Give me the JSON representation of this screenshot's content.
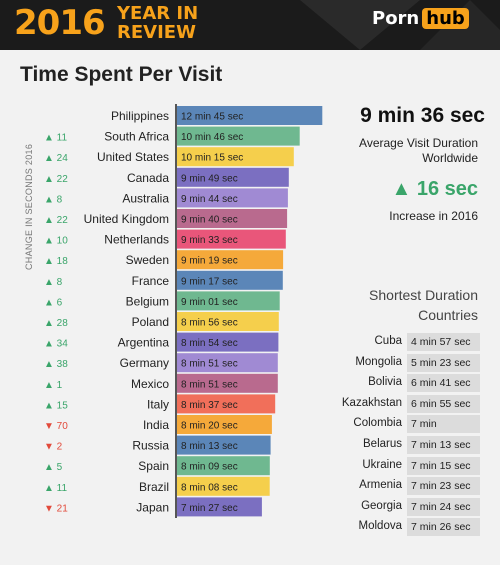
{
  "header": {
    "year": "2016",
    "year_in": "YEAR IN",
    "review": "REVIEW",
    "brand_left": "Porn",
    "brand_right": "hub"
  },
  "chart_data": {
    "type": "bar",
    "title": "Time Spent Per Visit",
    "ylabel": "CHANGE IN SECONDS 2016",
    "categories": [
      "Philippines",
      "South Africa",
      "United States",
      "Canada",
      "Australia",
      "United Kingdom",
      "Netherlands",
      "Sweden",
      "France",
      "Belgium",
      "Poland",
      "Argentina",
      "Germany",
      "Mexico",
      "Italy",
      "India",
      "Russia",
      "Spain",
      "Brazil",
      "Japan"
    ],
    "values_seconds": [
      765,
      646,
      615,
      589,
      584,
      580,
      573,
      559,
      557,
      541,
      536,
      534,
      531,
      531,
      517,
      500,
      493,
      489,
      488,
      447
    ],
    "value_labels": [
      "12 min 45 sec",
      "10 min 46 sec",
      "10 min 15 sec",
      "9 min 49 sec",
      "9 min 44 sec",
      "9 min 40 sec",
      "9 min 33 sec",
      "9 min 19 sec",
      "9 min 17 sec",
      "9 min 01 sec",
      "8 min 56 sec",
      "8 min 54 sec",
      "8 min 51 sec",
      "8 min 51 sec",
      "8 min 37 sec",
      "8 min 20 sec",
      "8 min 13 sec",
      "8 min 09 sec",
      "8 min 08 sec",
      "7 min 27 sec"
    ],
    "changes": [
      "",
      "▲ 11",
      "▲ 24",
      "▲ 22",
      "▲ 8",
      "▲ 22",
      "▲ 10",
      "▲ 18",
      "▲ 8",
      "▲ 6",
      "▲ 28",
      "▲ 34",
      "▲ 38",
      "▲ 1",
      "▲ 15",
      "▼ 70",
      "▼ 2",
      "▲ 5",
      "▲ 11",
      "▼ 21"
    ],
    "change_direction": [
      "none",
      "up",
      "up",
      "up",
      "up",
      "up",
      "up",
      "up",
      "up",
      "up",
      "up",
      "up",
      "up",
      "up",
      "up",
      "down",
      "down",
      "up",
      "up",
      "down"
    ],
    "bar_colors": [
      "#5b86b8",
      "#6fb890",
      "#f5cf4c",
      "#7b6fc1",
      "#a08ad3",
      "#b96a8e",
      "#e9567a",
      "#f5a93a",
      "#5b86b8",
      "#6fb890",
      "#f5cf4c",
      "#7b6fc1",
      "#a08ad3",
      "#b96a8e",
      "#f16f5a",
      "#f5a93a",
      "#5b86b8",
      "#6fb890",
      "#f5cf4c",
      "#7b6fc1"
    ],
    "x_axis_max_seconds": 790,
    "change_up_color": "#3aa56a",
    "change_down_color": "#e24a3b"
  },
  "summary": {
    "average_value": "9 min 36 sec",
    "average_label": "Average Visit Duration Worldwide",
    "increase_value": "▲ 16 sec",
    "increase_label": "Increase in 2016"
  },
  "shortest": {
    "title": "Shortest Duration Countries",
    "countries": [
      {
        "country": "Cuba",
        "time": "4 min 57 sec"
      },
      {
        "country": "Mongolia",
        "time": "5 min 23 sec"
      },
      {
        "country": "Bolivia",
        "time": "6 min 41 sec"
      },
      {
        "country": "Kazakhstan",
        "time": "6 min 55 sec"
      },
      {
        "country": "Colombia",
        "time": "7 min"
      },
      {
        "country": "Belarus",
        "time": "7 min 13 sec"
      },
      {
        "country": "Ukraine",
        "time": "7 min 15 sec"
      },
      {
        "country": "Armenia",
        "time": "7 min 23 sec"
      },
      {
        "country": "Georgia",
        "time": "7 min 24 sec"
      },
      {
        "country": "Moldova",
        "time": "7 min 26 sec"
      }
    ]
  },
  "colors": {
    "accent": "#f7a21b",
    "banner_bg": "#1b1b1b"
  }
}
